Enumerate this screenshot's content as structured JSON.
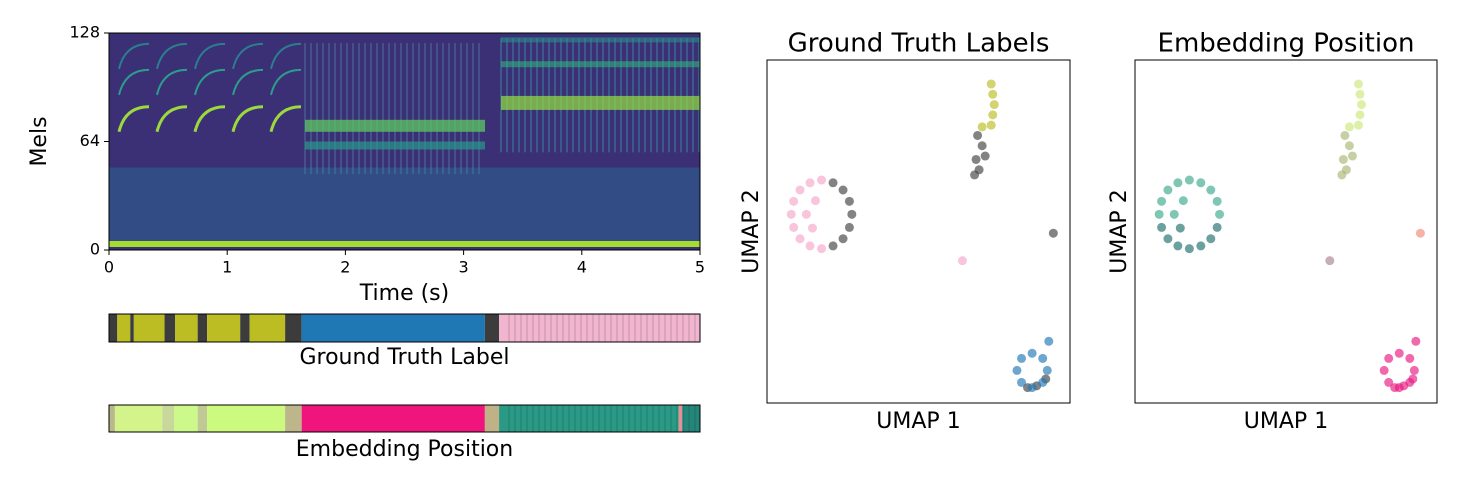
{
  "chart_data": [
    {
      "type": "spectrogram",
      "xlabel": "Time (s)",
      "ylabel": "Mels",
      "xlim": [
        0,
        5
      ],
      "xticks": [
        0,
        1,
        2,
        3,
        4,
        5
      ],
      "ylim": [
        0,
        128
      ],
      "yticks": [
        0,
        64,
        128
      ]
    },
    {
      "type": "timeline",
      "label": "Ground Truth Label",
      "xlim": [
        0,
        5
      ],
      "segments": [
        {
          "start": 0,
          "end": 0.07,
          "color": "#3c3c3c"
        },
        {
          "start": 0.07,
          "end": 0.18,
          "color": "#bcbd22"
        },
        {
          "start": 0.18,
          "end": 0.21,
          "color": "#3c3c3c"
        },
        {
          "start": 0.21,
          "end": 0.47,
          "color": "#bcbd22"
        },
        {
          "start": 0.47,
          "end": 0.56,
          "color": "#3c3c3c"
        },
        {
          "start": 0.56,
          "end": 0.75,
          "color": "#bcbd22"
        },
        {
          "start": 0.75,
          "end": 0.83,
          "color": "#3c3c3c"
        },
        {
          "start": 0.83,
          "end": 1.11,
          "color": "#bcbd22"
        },
        {
          "start": 1.11,
          "end": 1.19,
          "color": "#3c3c3c"
        },
        {
          "start": 1.19,
          "end": 1.49,
          "color": "#bcbd22"
        },
        {
          "start": 1.49,
          "end": 1.63,
          "color": "#3c3c3c"
        },
        {
          "start": 1.63,
          "end": 3.18,
          "color": "#1f77b4"
        },
        {
          "start": 3.18,
          "end": 3.3,
          "color": "#3c3c3c"
        },
        {
          "start": 3.3,
          "end": 5,
          "color": "#f2b5d0"
        }
      ]
    },
    {
      "type": "timeline",
      "label": "Embedding Position",
      "xlim": [
        0,
        5
      ],
      "segments": [
        {
          "start": 0,
          "end": 0.05,
          "color": "#b9b88c"
        },
        {
          "start": 0.05,
          "end": 0.45,
          "color": "#d2f48a"
        },
        {
          "start": 0.45,
          "end": 0.55,
          "color": "#c8d89a"
        },
        {
          "start": 0.55,
          "end": 0.75,
          "color": "#cdf88a"
        },
        {
          "start": 0.75,
          "end": 0.83,
          "color": "#c0c894"
        },
        {
          "start": 0.83,
          "end": 1.49,
          "color": "#ccfa7e"
        },
        {
          "start": 1.49,
          "end": 1.63,
          "color": "#bdb68a"
        },
        {
          "start": 1.63,
          "end": 3.18,
          "color": "#f0157d"
        },
        {
          "start": 3.18,
          "end": 3.3,
          "color": "#bfb287"
        },
        {
          "start": 3.3,
          "end": 4.82,
          "color": "#2a9a86"
        },
        {
          "start": 4.82,
          "end": 4.85,
          "color": "#e88f96"
        },
        {
          "start": 4.85,
          "end": 5,
          "color": "#24867a"
        }
      ]
    },
    {
      "type": "scatter",
      "title": "Ground Truth Labels",
      "xlabel": "UMAP 1",
      "ylabel": "UMAP 2",
      "xlim": [
        0,
        10
      ],
      "ylim": [
        0,
        10
      ],
      "series": [
        {
          "color": "#f4a6c9",
          "x": [
            1.8,
            1.42,
            1.09,
            0.88,
            0.8,
            0.88,
            1.09,
            1.42,
            1.8,
            1.3,
            1.6,
            1.5,
            6.45
          ],
          "y": [
            6.5,
            6.42,
            6.21,
            5.88,
            5.5,
            5.12,
            4.79,
            4.58,
            4.5,
            5.5,
            5.9,
            5.1,
            4.15
          ]
        },
        {
          "color": "#404040",
          "x": [
            2.8,
            2.72,
            2.51,
            2.18,
            2.18,
            2.51,
            2.72,
            6.95,
            7.1,
            6.9,
            7.0,
            7.2,
            6.85,
            8.9,
            9.2,
            8.6,
            9.45
          ],
          "y": [
            5.5,
            5.88,
            6.21,
            6.42,
            4.58,
            4.79,
            5.12,
            7.8,
            7.5,
            7.1,
            6.8,
            7.2,
            6.65,
            0.5,
            0.7,
            0.45,
            4.95
          ]
        },
        {
          "color": "#bcbd22",
          "x": [
            7.4,
            7.45,
            7.5,
            7.45,
            7.4,
            7.1
          ],
          "y": [
            9.3,
            9.0,
            8.7,
            8.4,
            8.1,
            8.05
          ]
        },
        {
          "color": "#1f77b4",
          "x": [
            9.25,
            9.1,
            8.75,
            8.4,
            8.25,
            8.4,
            8.75,
            9.1,
            9.3
          ],
          "y": [
            0.95,
            1.3,
            1.45,
            1.3,
            0.95,
            0.6,
            0.45,
            0.6,
            1.8
          ]
        }
      ]
    },
    {
      "type": "scatter",
      "title": "Embedding Position",
      "xlabel": "UMAP 1",
      "ylabel": "UMAP 2",
      "xlim": [
        0,
        10
      ],
      "ylim": [
        0,
        10
      ],
      "series": [
        {
          "color": "#3aa88e",
          "x": [
            2.8,
            2.72,
            2.51,
            2.18,
            1.8,
            1.42,
            1.09,
            0.88,
            0.8,
            1.6,
            1.3
          ],
          "y": [
            5.5,
            5.88,
            6.21,
            6.42,
            6.5,
            6.42,
            6.21,
            5.88,
            5.5,
            5.9,
            5.5
          ]
        },
        {
          "color": "#1e6f6c",
          "x": [
            0.88,
            1.09,
            1.42,
            1.8,
            2.18,
            2.51,
            2.72,
            1.5
          ],
          "y": [
            5.12,
            4.79,
            4.58,
            4.5,
            4.58,
            4.79,
            5.12,
            5.1
          ]
        },
        {
          "color": "#cde87a",
          "x": [
            7.4,
            7.45,
            7.5,
            7.45,
            7.4,
            7.1
          ],
          "y": [
            9.3,
            9.0,
            8.7,
            8.4,
            8.1,
            8.05
          ]
        },
        {
          "color": "#a9b574",
          "x": [
            6.95,
            7.1,
            6.9,
            7.0,
            7.2,
            6.85
          ],
          "y": [
            7.8,
            7.5,
            7.1,
            6.8,
            7.2,
            6.65
          ]
        },
        {
          "color": "#e8197f",
          "x": [
            9.25,
            9.1,
            8.75,
            8.4,
            8.25,
            8.4,
            8.75,
            9.1,
            9.3,
            8.9,
            9.2,
            8.6
          ],
          "y": [
            0.95,
            1.3,
            1.45,
            1.3,
            0.95,
            0.6,
            0.45,
            0.6,
            1.8,
            0.5,
            0.7,
            0.45
          ]
        },
        {
          "color": "#f08a7a",
          "x": [
            9.45
          ],
          "y": [
            4.95
          ]
        },
        {
          "color": "#a8848e",
          "x": [
            6.45
          ],
          "y": [
            4.15
          ]
        }
      ]
    }
  ]
}
